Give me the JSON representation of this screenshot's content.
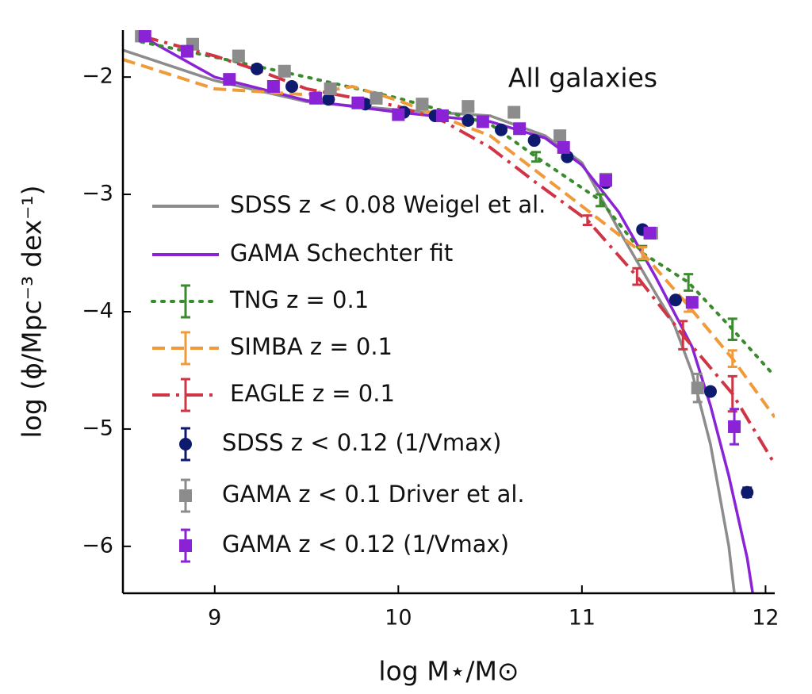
{
  "chart_data": {
    "type": "line",
    "annotation": "All galaxies",
    "x_label": "log M⋆/M⊙",
    "y_label": "log (ϕ/Mpc⁻³ dex⁻¹)",
    "xlim": [
      8.5,
      12.05
    ],
    "ylim": [
      -6.4,
      -1.6
    ],
    "xticks": [
      9,
      10,
      11,
      12
    ],
    "yticks": [
      {
        "value": -2,
        "label": "−2"
      },
      {
        "value": -3,
        "label": "−3"
      },
      {
        "value": -4,
        "label": "−4"
      },
      {
        "value": -5,
        "label": "−5"
      },
      {
        "value": -6,
        "label": "−6"
      }
    ],
    "series": [
      {
        "name": "SDSS z < 0.08 Weigel et al.",
        "color": "#8c8c8c",
        "style": "solid",
        "x": [
          8.5,
          9,
          9.5,
          10,
          10.5,
          10.8,
          11,
          11.2,
          11.4,
          11.5,
          11.6,
          11.7,
          11.8,
          11.83
        ],
        "values": [
          -1.77,
          -2.03,
          -2.21,
          -2.28,
          -2.33,
          -2.5,
          -2.73,
          -3.3,
          -3.84,
          -4.1,
          -4.52,
          -5.13,
          -6.0,
          -6.4
        ]
      },
      {
        "name": "GAMA Schechter fit",
        "color": "#8a22d6",
        "style": "solid",
        "x": [
          8.6,
          9,
          9.5,
          10,
          10.5,
          10.8,
          11,
          11.2,
          11.4,
          11.6,
          11.7,
          11.8,
          11.9,
          11.93
        ],
        "values": [
          -1.65,
          -2.0,
          -2.2,
          -2.3,
          -2.38,
          -2.52,
          -2.75,
          -3.15,
          -3.7,
          -4.3,
          -4.8,
          -5.4,
          -6.1,
          -6.4
        ]
      },
      {
        "name": "TNG z = 0.1",
        "color": "#3a8a2e",
        "style": "dotted",
        "x": [
          8.6,
          9,
          9.5,
          10,
          10.5,
          10.75,
          11.1,
          11.33,
          11.58,
          11.82,
          12.05
        ],
        "values": [
          -1.7,
          -1.83,
          -2.0,
          -2.18,
          -2.4,
          -2.68,
          -3.05,
          -3.5,
          -3.75,
          -4.15,
          -4.55
        ],
        "errors": [
          null,
          null,
          null,
          null,
          null,
          0.04,
          0.05,
          0.06,
          0.07,
          0.09,
          null
        ]
      },
      {
        "name": "SIMBA z = 0.1",
        "color": "#f09a3a",
        "style": "dashed",
        "x": [
          8.5,
          9,
          9.5,
          9.75,
          10,
          10.5,
          10.75,
          11,
          11.33,
          11.58,
          11.82,
          12.05
        ],
        "values": [
          -1.85,
          -2.1,
          -2.15,
          -2.08,
          -2.2,
          -2.5,
          -2.8,
          -3.1,
          -3.5,
          -3.95,
          -4.4,
          -4.9
        ],
        "errors": [
          null,
          null,
          null,
          null,
          null,
          null,
          null,
          null,
          0.05,
          0.05,
          0.07,
          null
        ]
      },
      {
        "name": "EAGLE z = 0.1",
        "color": "#d03545",
        "style": "dashdot",
        "x": [
          8.6,
          9,
          9.25,
          9.5,
          10,
          10.25,
          10.5,
          10.75,
          11.03,
          11.3,
          11.55,
          11.82,
          12.05
        ],
        "values": [
          -1.65,
          -1.82,
          -1.95,
          -2.1,
          -2.25,
          -2.38,
          -2.6,
          -2.9,
          -3.22,
          -3.7,
          -4.2,
          -4.7,
          -5.3
        ],
        "errors": [
          null,
          null,
          null,
          null,
          null,
          null,
          null,
          null,
          0.04,
          0.07,
          0.12,
          0.15,
          null
        ]
      },
      {
        "name": "SDSS z < 0.12 (1/Vmax)",
        "color": "#0d1a6e",
        "marker": "circle",
        "x": [
          9.23,
          9.42,
          9.62,
          9.82,
          10.03,
          10.2,
          10.38,
          10.56,
          10.74,
          10.92,
          11.13,
          11.33,
          11.51,
          11.7,
          11.9
        ],
        "values": [
          -1.93,
          -2.08,
          -2.19,
          -2.23,
          -2.3,
          -2.33,
          -2.37,
          -2.45,
          -2.54,
          -2.68,
          -2.9,
          -3.3,
          -3.9,
          -4.68,
          -5.54
        ],
        "errors": [
          null,
          null,
          null,
          null,
          null,
          null,
          null,
          null,
          null,
          null,
          null,
          null,
          null,
          null,
          0.04
        ]
      },
      {
        "name": "GAMA z < 0.1 Driver et al.",
        "color": "#8c8c8c",
        "marker": "square",
        "x": [
          8.6,
          8.88,
          9.13,
          9.38,
          9.63,
          9.88,
          10.13,
          10.38,
          10.63,
          10.88,
          11.13,
          11.38,
          11.63
        ],
        "values": [
          -1.65,
          -1.72,
          -1.82,
          -1.95,
          -2.1,
          -2.18,
          -2.23,
          -2.25,
          -2.3,
          -2.5,
          -2.87,
          -3.33,
          -4.65
        ],
        "errors": [
          null,
          null,
          null,
          null,
          null,
          null,
          null,
          null,
          null,
          null,
          null,
          null,
          0.12
        ]
      },
      {
        "name": "GAMA z < 0.12 (1/Vmax)",
        "color": "#8a22d6",
        "marker": "square",
        "x": [
          8.62,
          8.85,
          9.08,
          9.32,
          9.55,
          9.78,
          10.0,
          10.24,
          10.46,
          10.66,
          10.9,
          11.13,
          11.37,
          11.6,
          11.83
        ],
        "values": [
          -1.65,
          -1.78,
          -2.02,
          -2.08,
          -2.18,
          -2.22,
          -2.32,
          -2.33,
          -2.38,
          -2.44,
          -2.6,
          -2.88,
          -3.33,
          -3.92,
          -4.98
        ],
        "errors": [
          null,
          null,
          null,
          null,
          null,
          null,
          null,
          null,
          null,
          null,
          null,
          null,
          null,
          null,
          0.15
        ]
      }
    ]
  }
}
